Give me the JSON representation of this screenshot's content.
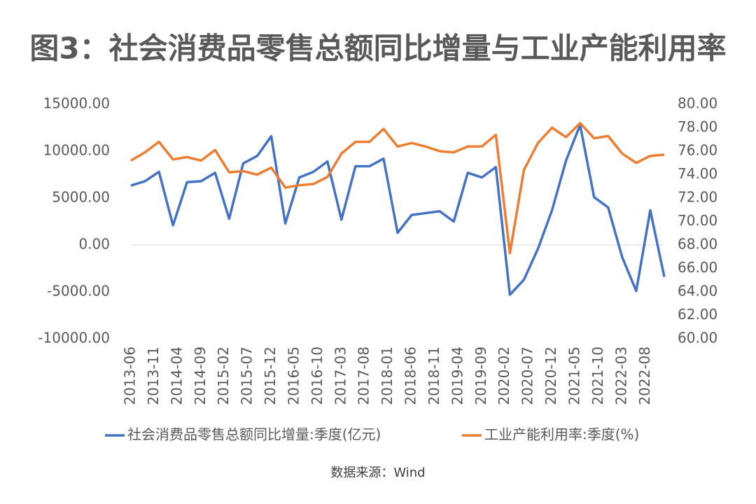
{
  "chart_data": {
    "type": "line",
    "title": "图3：社会消费品零售总额同比增量与工业产能利用率",
    "source": "数据来源：Wind",
    "x": [
      "2013-06",
      "2013-09",
      "2013-12",
      "2014-03",
      "2014-06",
      "2014-09",
      "2014-12",
      "2015-03",
      "2015-06",
      "2015-09",
      "2015-12",
      "2016-03",
      "2016-06",
      "2016-09",
      "2016-12",
      "2017-03",
      "2017-06",
      "2017-09",
      "2017-12",
      "2018-03",
      "2018-06",
      "2018-09",
      "2018-12",
      "2019-03",
      "2019-06",
      "2019-09",
      "2019-12",
      "2020-03",
      "2020-06",
      "2020-09",
      "2020-12",
      "2021-03",
      "2021-06",
      "2021-09",
      "2021-12",
      "2022-03",
      "2022-06",
      "2022-09",
      "2022-12"
    ],
    "xlim": [
      "2013-06",
      "2022-12"
    ],
    "xticks": [
      "2013-06",
      "2013-11",
      "2014-04",
      "2014-09",
      "2015-02",
      "2015-07",
      "2015-12",
      "2016-05",
      "2016-10",
      "2017-03",
      "2017-08",
      "2018-01",
      "2018-06",
      "2018-11",
      "2019-04",
      "2019-09",
      "2020-02",
      "2020-07",
      "2020-12",
      "2021-05",
      "2021-10",
      "2022-03",
      "2022-08"
    ],
    "ylim": [
      -10000,
      15000
    ],
    "yticks": [
      {
        "value": -10000,
        "label": "-10000.00"
      },
      {
        "value": -5000,
        "label": "-5000.00"
      },
      {
        "value": 0,
        "label": "0.00"
      },
      {
        "value": 5000,
        "label": "5000.00"
      },
      {
        "value": 10000,
        "label": "10000.00"
      },
      {
        "value": 15000,
        "label": "15000.00"
      }
    ],
    "y2lim": [
      60,
      80
    ],
    "y2ticks": [
      {
        "value": 60,
        "label": "60.00"
      },
      {
        "value": 62,
        "label": "62.00"
      },
      {
        "value": 64,
        "label": "64.00"
      },
      {
        "value": 66,
        "label": "66.00"
      },
      {
        "value": 68,
        "label": "68.00"
      },
      {
        "value": 70,
        "label": "70.00"
      },
      {
        "value": 72,
        "label": "72.00"
      },
      {
        "value": 74,
        "label": "74.00"
      },
      {
        "value": 76,
        "label": "76.00"
      },
      {
        "value": 78,
        "label": "78.00"
      },
      {
        "value": 80,
        "label": "80.00"
      }
    ],
    "legend": "bottom",
    "series": [
      {
        "name": "社会消费品零售总额同比增量:季度(亿元)",
        "color": "#4472c4",
        "values": [
          6340,
          6800,
          7800,
          2100,
          6700,
          6800,
          7700,
          2800,
          8700,
          9500,
          11600,
          2300,
          7200,
          7800,
          8900,
          2700,
          8400,
          8400,
          9200,
          1300,
          3200,
          3400,
          3600,
          2500,
          7700,
          7200,
          8300,
          -5300,
          -3700,
          -400,
          3700,
          9000,
          12800,
          5100,
          4000,
          -1300,
          -4900,
          3700,
          -3400
        ]
      },
      {
        "name": "工业产能利用率:季度(%)",
        "color": "#ed7d31",
        "axis": "y2",
        "values": [
          75.2,
          75.9,
          76.8,
          75.3,
          75.5,
          75.2,
          76.1,
          74.2,
          74.3,
          74.0,
          74.6,
          72.9,
          73.1,
          73.2,
          73.8,
          75.8,
          76.8,
          76.8,
          77.9,
          76.4,
          76.7,
          76.4,
          76.0,
          75.9,
          76.4,
          76.4,
          77.4,
          67.3,
          74.4,
          76.7,
          78.0,
          77.2,
          78.4,
          77.1,
          77.3,
          75.8,
          75.0,
          75.6,
          75.7
        ]
      }
    ]
  }
}
